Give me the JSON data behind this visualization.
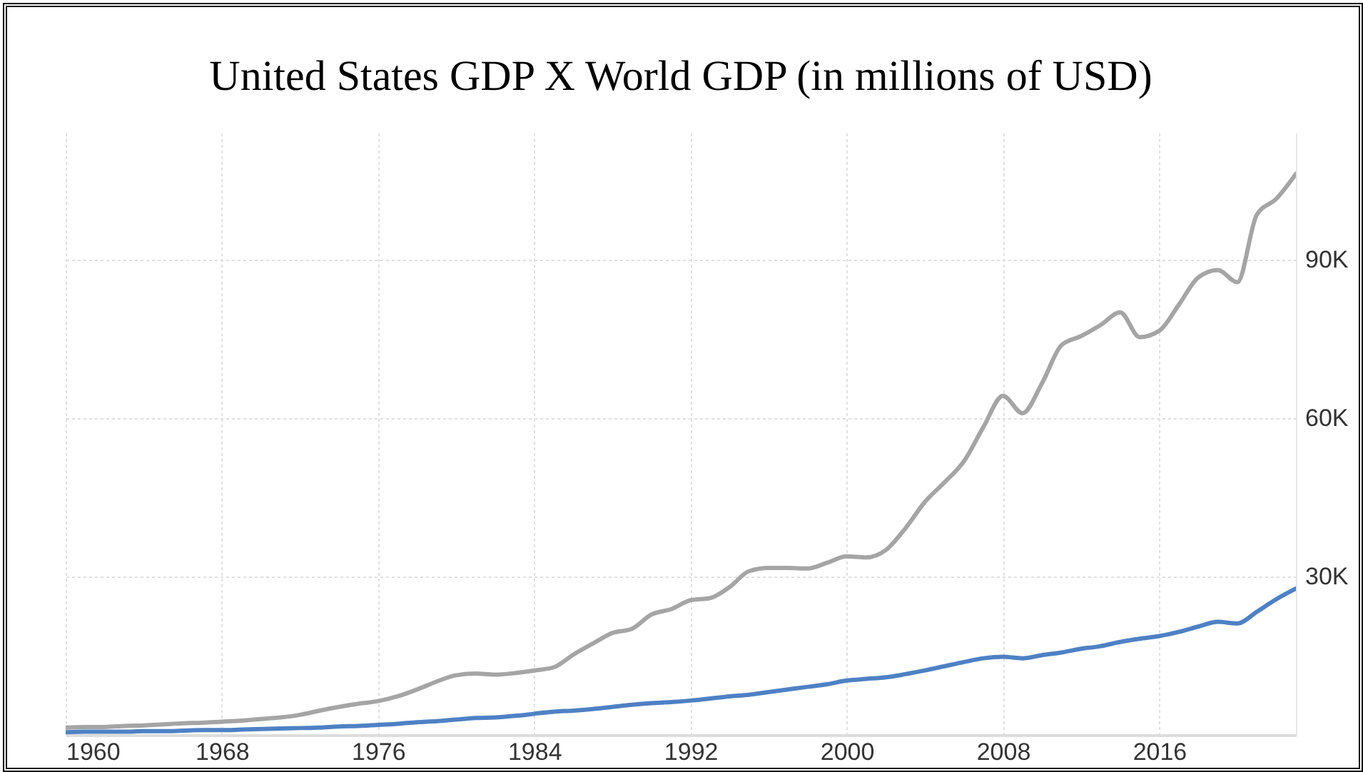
{
  "chart_data": {
    "type": "line",
    "title": "United States GDP X World GDP (in millions of USD)",
    "x": [
      1960,
      1961,
      1962,
      1963,
      1964,
      1965,
      1966,
      1967,
      1968,
      1969,
      1970,
      1971,
      1972,
      1973,
      1974,
      1975,
      1976,
      1977,
      1978,
      1979,
      1980,
      1981,
      1982,
      1983,
      1984,
      1985,
      1986,
      1987,
      1988,
      1989,
      1990,
      1991,
      1992,
      1993,
      1994,
      1995,
      1996,
      1997,
      1998,
      1999,
      2000,
      2001,
      2002,
      2003,
      2004,
      2005,
      2006,
      2007,
      2008,
      2009,
      2010,
      2011,
      2012,
      2013,
      2014,
      2015,
      2016,
      2017,
      2018,
      2019,
      2020,
      2021,
      2022,
      2023
    ],
    "series": [
      {
        "color": "#a5a5a5",
        "values": [
          1400,
          1500,
          1500,
          1700,
          1800,
          2000,
          2200,
          2300,
          2500,
          2700,
          3000,
          3300,
          3800,
          4600,
          5300,
          5900,
          6400,
          7300,
          8600,
          10100,
          11300,
          11600,
          11400,
          11700,
          12200,
          12800,
          15200,
          17300,
          19300,
          20100,
          22800,
          23800,
          25500,
          25900,
          28000,
          31000,
          31600,
          31600,
          31500,
          32600,
          33800,
          33600,
          35000,
          39100,
          44100,
          47800,
          51800,
          58300,
          64200,
          60900,
          66600,
          73800,
          75500,
          77600,
          80000,
          75300,
          76500,
          81400,
          86600,
          88000,
          85700,
          98500,
          101500,
          106200
        ]
      },
      {
        "color": "#4e81c4",
        "values": [
          500,
          600,
          600,
          600,
          700,
          700,
          800,
          900,
          900,
          1000,
          1100,
          1200,
          1300,
          1400,
          1600,
          1700,
          1900,
          2100,
          2400,
          2600,
          2900,
          3200,
          3300,
          3600,
          4000,
          4400,
          4600,
          4900,
          5300,
          5700,
          6000,
          6200,
          6500,
          6900,
          7300,
          7600,
          8100,
          8600,
          9100,
          9600,
          10300,
          10600,
          10900,
          11500,
          12200,
          13000,
          13800,
          14500,
          14800,
          14500,
          15100,
          15600,
          16300,
          16800,
          17600,
          18200,
          18700,
          19500,
          20500,
          21400,
          21100,
          23300,
          25700,
          27700
        ]
      }
    ],
    "xlim": [
      1960,
      2023
    ],
    "xticks": [
      1960,
      1968,
      1976,
      1984,
      1992,
      2000,
      2008,
      2016
    ],
    "ylim": [
      0,
      114000
    ],
    "yticks": [
      {
        "value": 30000,
        "label": "30K"
      },
      {
        "value": 60000,
        "label": "60K"
      },
      {
        "value": 90000,
        "label": "90K"
      }
    ],
    "grid": true,
    "legend": false,
    "marker": "none",
    "line_style": "solid"
  }
}
